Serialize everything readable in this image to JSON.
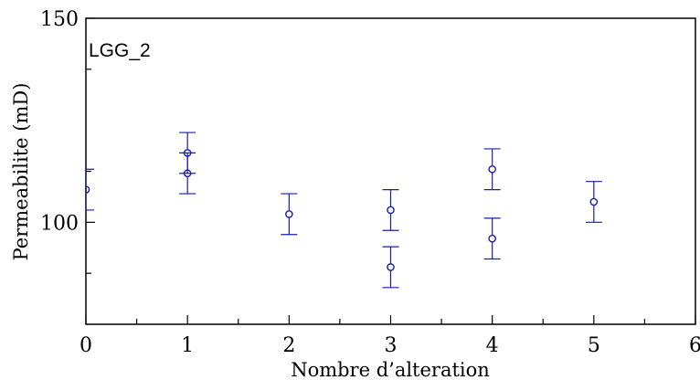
{
  "chart_data": {
    "type": "scatter",
    "annotation": "LGG_2",
    "xlabel": "Nombre d’alteration",
    "ylabel": "Permeabilite (mD)",
    "xlim": [
      0,
      6
    ],
    "ylim": [
      75,
      150
    ],
    "x_ticks": [
      0,
      1,
      2,
      3,
      4,
      5,
      6
    ],
    "x_tick_labels": [
      "0",
      "1",
      "2",
      "3",
      "4",
      "5",
      "6"
    ],
    "x_minor_ticks": [
      0.5,
      1.5,
      2.5,
      3.5,
      4.5,
      5.5
    ],
    "y_ticks": [
      100,
      150
    ],
    "y_tick_labels": [
      "100",
      "150"
    ],
    "y_minor_ticks": [
      87.5,
      112.5,
      137.5
    ],
    "grid": false,
    "colors": {
      "series": "#1a1ab4",
      "axis": "#000000"
    },
    "series": [
      {
        "points": [
          {
            "x": 0,
            "y": 108,
            "err": 5
          },
          {
            "x": 1,
            "y": 117,
            "err": 5
          },
          {
            "x": 1,
            "y": 112,
            "err": 5
          },
          {
            "x": 2,
            "y": 102,
            "err": 5
          },
          {
            "x": 3,
            "y": 103,
            "err": 5
          },
          {
            "x": 3,
            "y": 89,
            "err": 5
          },
          {
            "x": 4,
            "y": 113,
            "err": 5
          },
          {
            "x": 4,
            "y": 96,
            "err": 5
          },
          {
            "x": 5,
            "y": 105,
            "err": 5
          }
        ]
      }
    ]
  }
}
